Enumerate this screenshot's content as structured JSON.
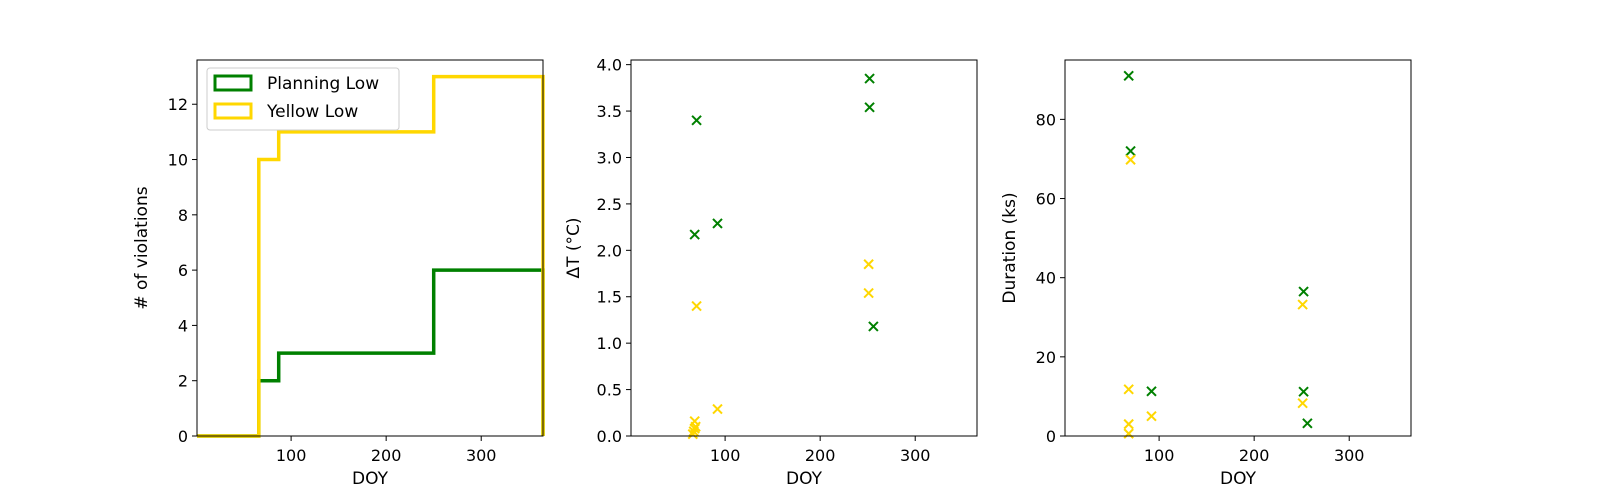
{
  "colors": {
    "planning": "#008000",
    "yellow": "#FFD700"
  },
  "chart_data": [
    {
      "type": "line",
      "step": true,
      "xlabel": "DOY",
      "ylabel": "# of violations",
      "xlim": [
        1,
        365
      ],
      "ylim": [
        0,
        13.6
      ],
      "xticks": [
        100,
        200,
        300
      ],
      "yticks": [
        0,
        2,
        4,
        6,
        8,
        10,
        12
      ],
      "legend_position": "top-left",
      "series": [
        {
          "name": "Planning Low",
          "color": "#008000",
          "x": [
            1,
            66,
            66,
            87,
            87,
            250,
            250,
            365,
            365
          ],
          "y": [
            0,
            0,
            2,
            2,
            3,
            3,
            6,
            6,
            0
          ]
        },
        {
          "name": "Yellow Low",
          "color": "#FFD700",
          "x": [
            1,
            66,
            66,
            87,
            87,
            250,
            250,
            365,
            365
          ],
          "y": [
            0,
            0,
            10,
            10,
            11,
            11,
            13,
            13,
            0
          ]
        }
      ]
    },
    {
      "type": "scatter",
      "marker": "x",
      "xlabel": "DOY",
      "ylabel": "ΔT (°C)",
      "xlim": [
        1,
        365
      ],
      "ylim": [
        0,
        4.05
      ],
      "xticks": [
        100,
        200,
        300
      ],
      "yticks": [
        0.0,
        0.5,
        1.0,
        1.5,
        2.0,
        2.5,
        3.0,
        3.5,
        4.0
      ],
      "ytick_labels": [
        "0.0",
        "0.5",
        "1.0",
        "1.5",
        "2.0",
        "2.5",
        "3.0",
        "3.5",
        "4.0"
      ],
      "series": [
        {
          "color": "#008000",
          "x": [
            68,
            70,
            92,
            252,
            252,
            256
          ],
          "y": [
            2.17,
            3.4,
            2.29,
            3.85,
            3.54,
            1.18
          ]
        },
        {
          "color": "#FFD700",
          "x": [
            66,
            67,
            68,
            68,
            69,
            70,
            92,
            251,
            251
          ],
          "y": [
            0.02,
            0.05,
            0.08,
            0.16,
            0.1,
            1.4,
            0.29,
            1.85,
            1.54
          ]
        }
      ]
    },
    {
      "type": "scatter",
      "marker": "x",
      "xlabel": "DOY",
      "ylabel": "Duration (ks)",
      "xlim": [
        1,
        365
      ],
      "ylim": [
        0,
        95
      ],
      "xticks": [
        100,
        200,
        300
      ],
      "yticks": [
        0,
        20,
        40,
        60,
        80
      ],
      "series": [
        {
          "color": "#008000",
          "x": [
            68,
            70,
            92,
            252,
            252,
            256
          ],
          "y": [
            91,
            72,
            11.3,
            36.5,
            11.2,
            3.2
          ]
        },
        {
          "color": "#FFD700",
          "x": [
            68,
            70,
            68,
            68,
            92,
            251,
            251
          ],
          "y": [
            11.8,
            69.8,
            3.0,
            0.6,
            5.0,
            33.2,
            8.3
          ]
        }
      ]
    }
  ]
}
